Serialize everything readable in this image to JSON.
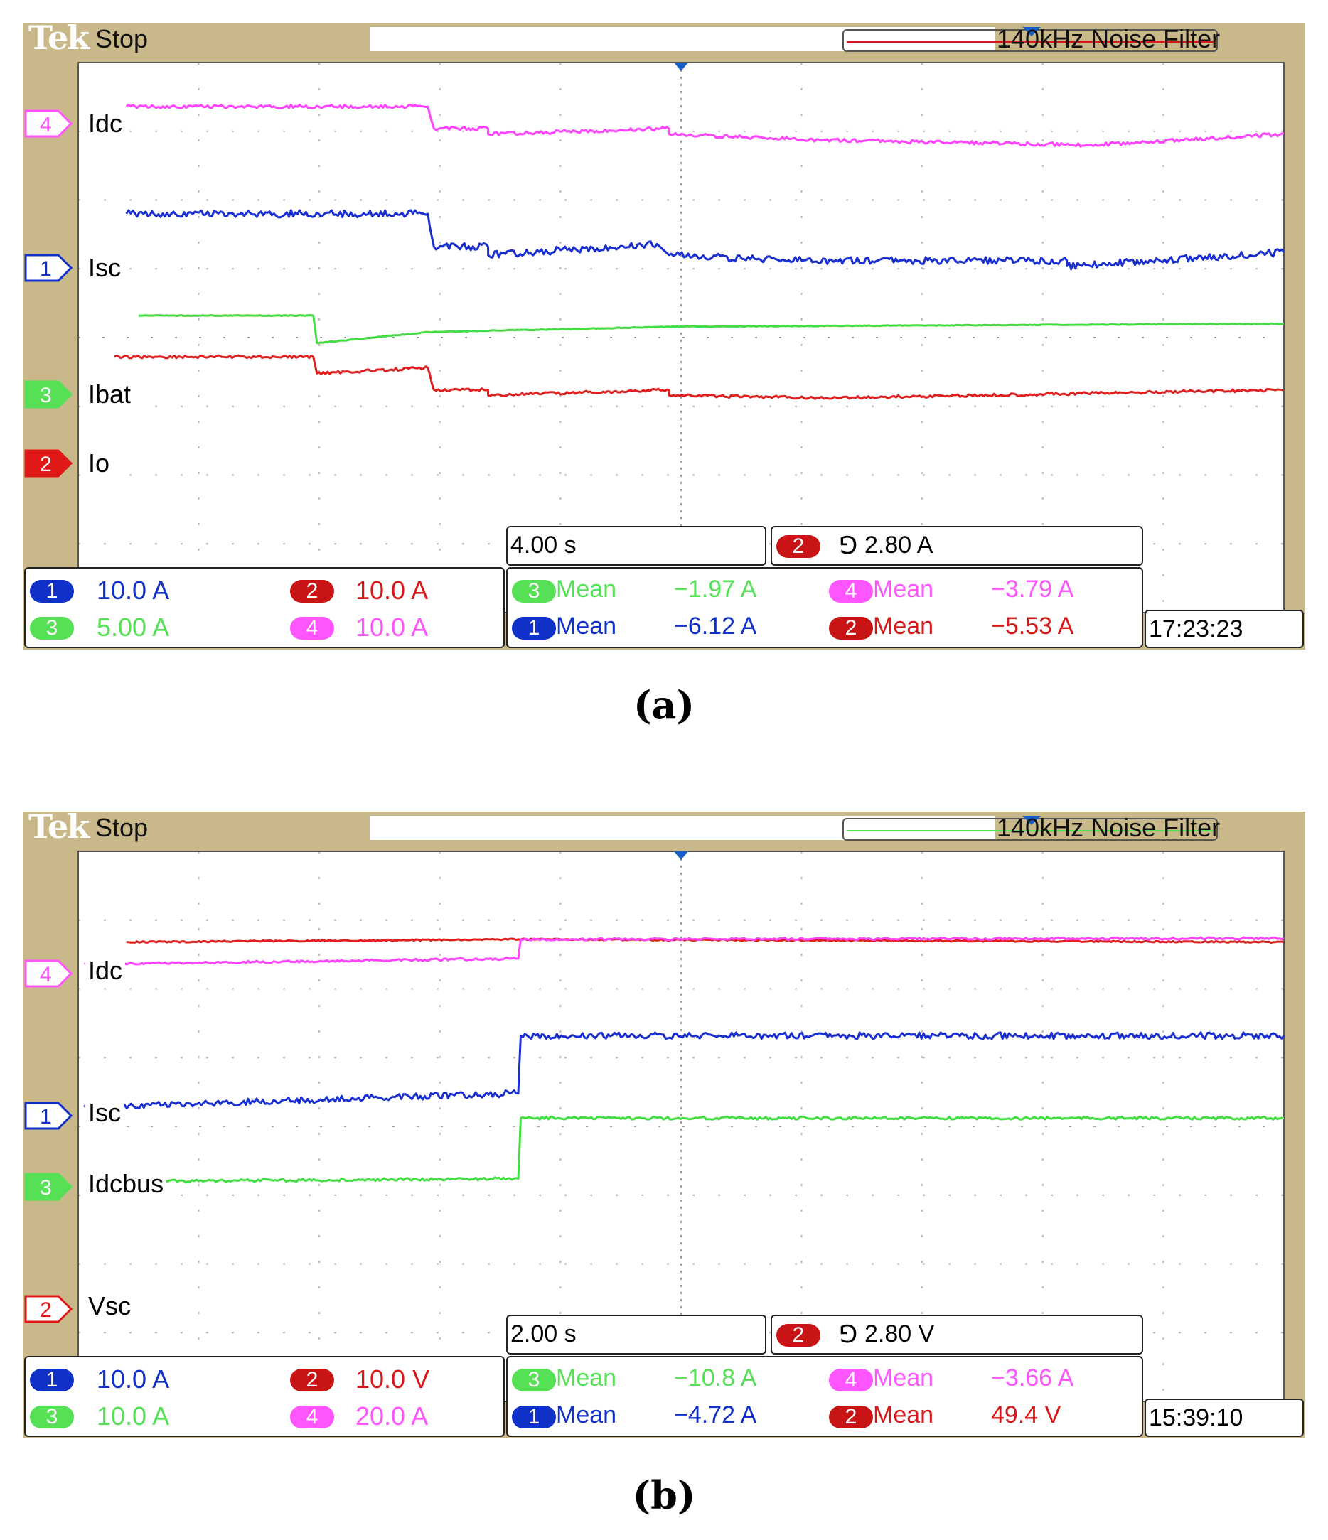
{
  "panels": [
    {
      "id": "a",
      "brand": "Tek",
      "status": "Stop",
      "filter": "140kHz  Noise Filter",
      "timebase": "4.00 s",
      "trigger": {
        "channel": "2",
        "symbol": "⅁",
        "level": "2.80 A"
      },
      "clock": "17:23:23",
      "record_line_color": "#d81818",
      "channel_markers": [
        {
          "num": "4",
          "label": "Idc",
          "color": "#ff55ff",
          "style": "outline"
        },
        {
          "num": "1",
          "label": "Isc",
          "color": "#1030c8",
          "style": "outline"
        },
        {
          "num": "3",
          "label": "Ibat",
          "color": "#55e055",
          "style": "filled"
        },
        {
          "num": "2",
          "label": "Io",
          "color": "#e01818",
          "style": "filled"
        }
      ],
      "scales": [
        {
          "ch": "1",
          "value": "10.0 A",
          "color": "#1030c8"
        },
        {
          "ch": "2",
          "value": "10.0 A",
          "color": "#d81818"
        },
        {
          "ch": "3",
          "value": "5.00 A",
          "color": "#55e055"
        },
        {
          "ch": "4",
          "value": "10.0 A",
          "color": "#ff55ff"
        }
      ],
      "measurements": [
        {
          "ch": "3",
          "type": "Mean",
          "value": "−1.97 A",
          "color": "#55e055"
        },
        {
          "ch": "4",
          "type": "Mean",
          "value": "−3.79 A",
          "color": "#ff55ff"
        },
        {
          "ch": "1",
          "type": "Mean",
          "value": "−6.12 A",
          "color": "#1030c8"
        },
        {
          "ch": "2",
          "type": "Mean",
          "value": "−5.53 A",
          "color": "#d81818"
        }
      ],
      "caption": "(a)"
    },
    {
      "id": "b",
      "brand": "Tek",
      "status": "Stop",
      "filter": "140kHz  Noise Filter",
      "timebase": "2.00 s",
      "trigger": {
        "channel": "2",
        "symbol": "⅁",
        "level": "2.80 V"
      },
      "clock": "15:39:10",
      "record_line_color": "#55e055",
      "channel_markers": [
        {
          "num": "4",
          "label": "Idc",
          "color": "#ff55ff",
          "style": "outline"
        },
        {
          "num": "1",
          "label": "Isc",
          "color": "#1030c8",
          "style": "outline"
        },
        {
          "num": "3",
          "label": "Idcbus",
          "color": "#55e055",
          "style": "filled"
        },
        {
          "num": "2",
          "label": "Vsc",
          "color": "#e01818",
          "style": "outline"
        }
      ],
      "scales": [
        {
          "ch": "1",
          "value": "10.0 A",
          "color": "#1030c8"
        },
        {
          "ch": "2",
          "value": "10.0 V",
          "color": "#d81818"
        },
        {
          "ch": "3",
          "value": "10.0 A",
          "color": "#55e055"
        },
        {
          "ch": "4",
          "value": "20.0 A",
          "color": "#ff55ff"
        }
      ],
      "measurements": [
        {
          "ch": "3",
          "type": "Mean",
          "value": "−10.8 A",
          "color": "#55e055"
        },
        {
          "ch": "4",
          "type": "Mean",
          "value": "−3.66 A",
          "color": "#ff55ff"
        },
        {
          "ch": "1",
          "type": "Mean",
          "value": "−4.72 A",
          "color": "#1030c8"
        },
        {
          "ch": "2",
          "type": "Mean",
          "value": "49.4 V",
          "color": "#d81818"
        }
      ],
      "caption": "(b)"
    }
  ]
}
